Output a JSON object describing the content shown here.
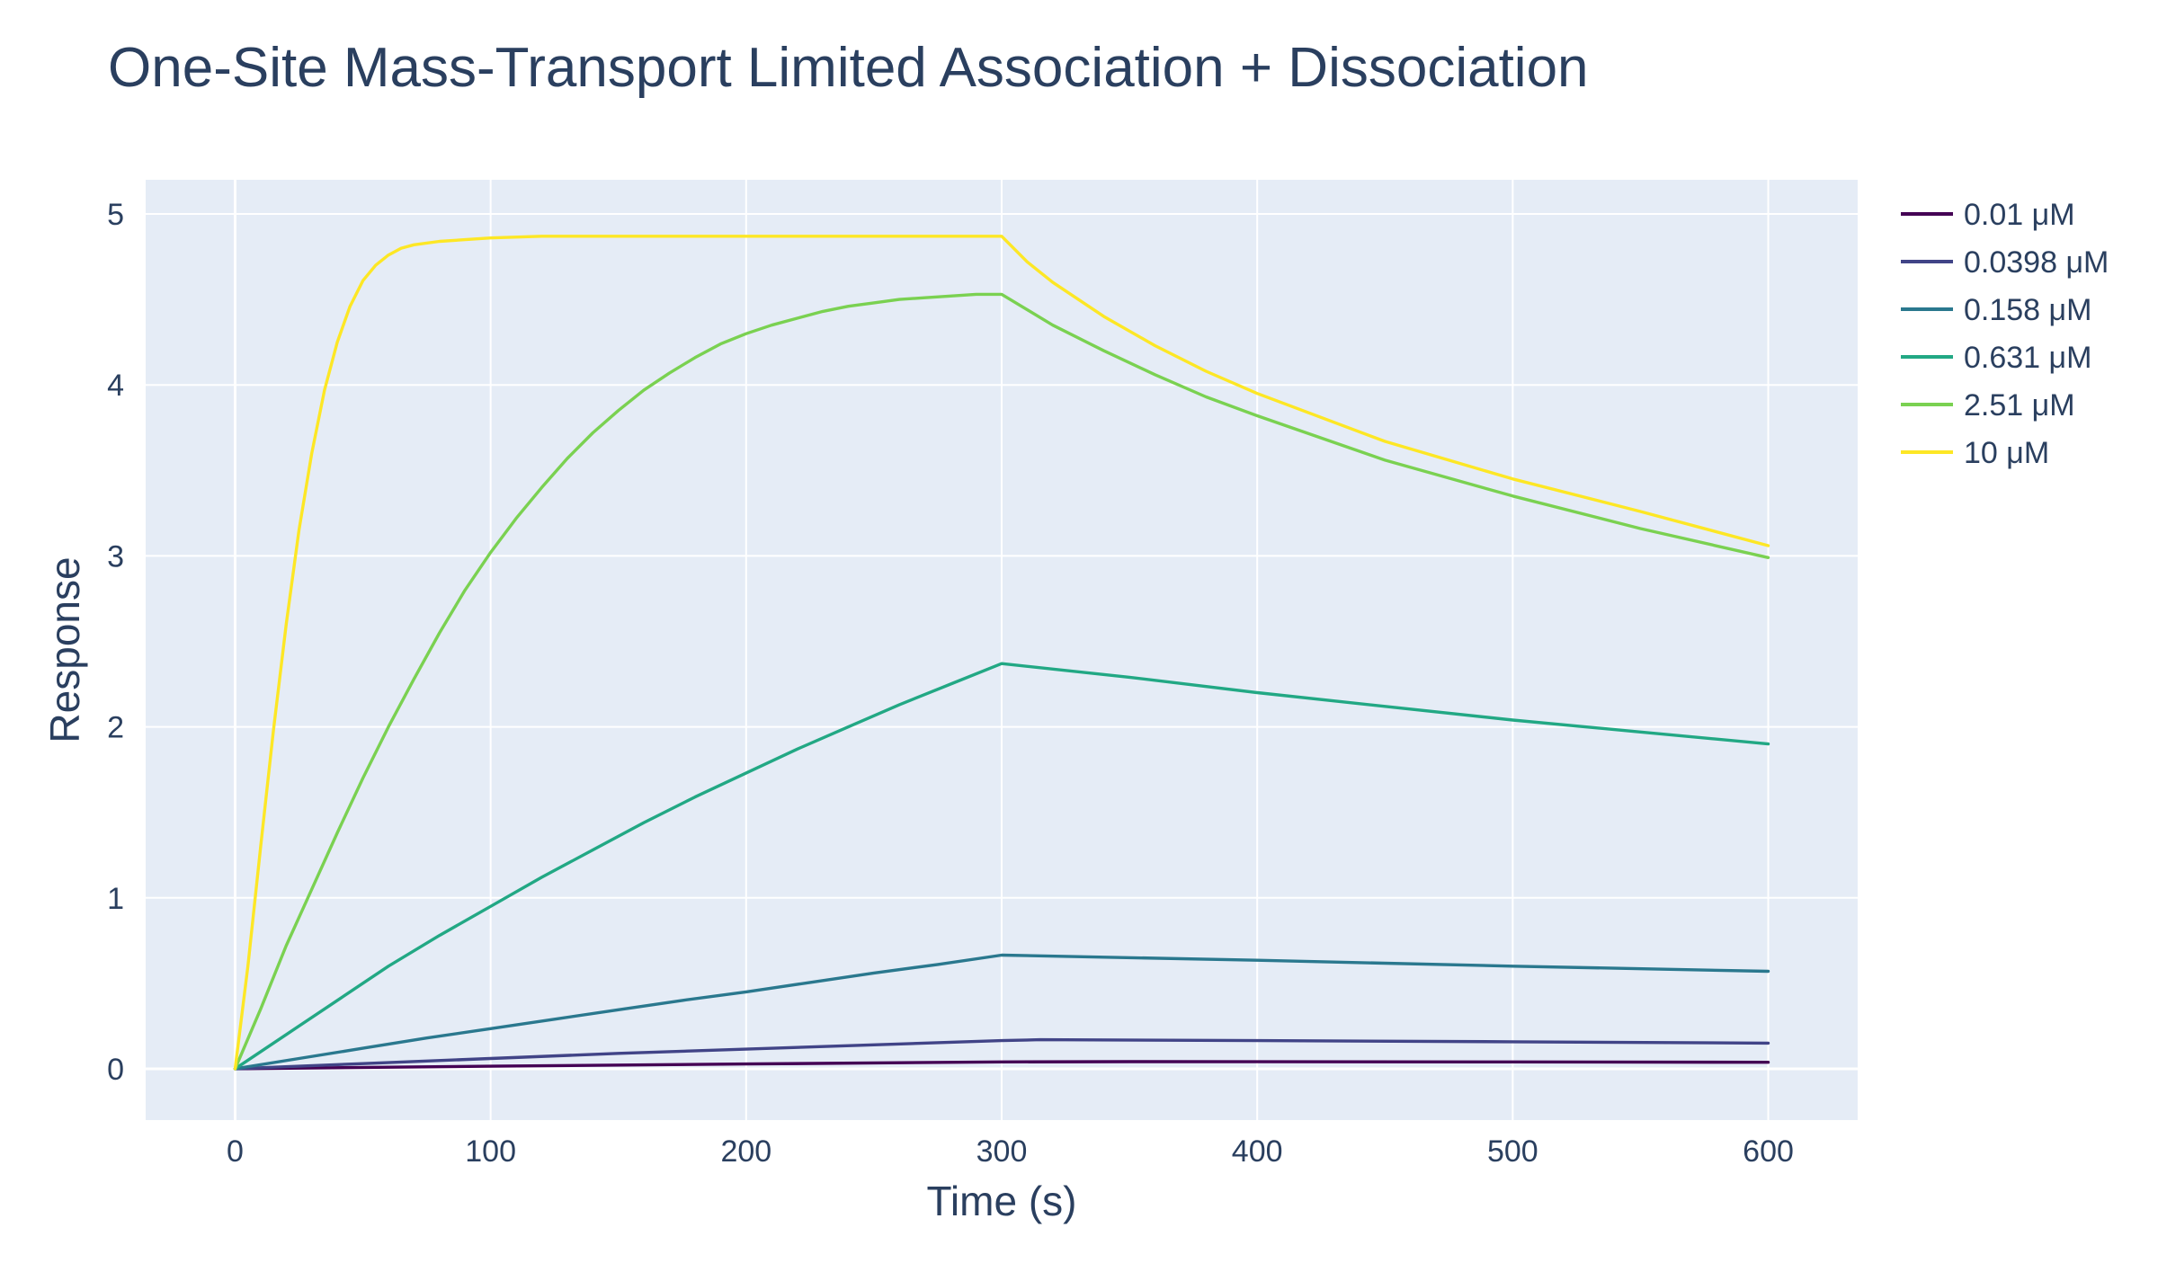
{
  "chart_data": {
    "type": "line",
    "title": "One-Site Mass-Transport Limited Association + Dissociation",
    "xlabel": "Time (s)",
    "ylabel": "Response",
    "xlim": [
      -35,
      635
    ],
    "ylim": [
      -0.3,
      5.2
    ],
    "xticks": [
      0,
      100,
      200,
      300,
      400,
      500,
      600
    ],
    "yticks": [
      0,
      1,
      2,
      3,
      4,
      5
    ],
    "grid": true,
    "legend_position": "right",
    "plot_background": "#e5ecf6",
    "series": [
      {
        "name": "0.01 μM",
        "color": "#440154",
        "x": [
          0,
          100,
          200,
          300,
          350,
          400,
          500,
          600
        ],
        "y": [
          0,
          0.015,
          0.028,
          0.04,
          0.042,
          0.041,
          0.04,
          0.038
        ]
      },
      {
        "name": "0.0398 μM",
        "color": "#414487",
        "x": [
          0,
          50,
          100,
          150,
          200,
          250,
          300,
          315,
          400,
          500,
          600
        ],
        "y": [
          0,
          0.03,
          0.06,
          0.09,
          0.115,
          0.14,
          0.165,
          0.17,
          0.165,
          0.158,
          0.15
        ]
      },
      {
        "name": "0.158 μM",
        "color": "#2a788e",
        "x": [
          0,
          25,
          50,
          75,
          100,
          125,
          150,
          175,
          200,
          225,
          250,
          275,
          300,
          400,
          500,
          600
        ],
        "y": [
          0,
          0.06,
          0.12,
          0.18,
          0.235,
          0.29,
          0.345,
          0.4,
          0.45,
          0.505,
          0.56,
          0.61,
          0.665,
          0.635,
          0.6,
          0.57
        ]
      },
      {
        "name": "0.631 μM",
        "color": "#22a884",
        "x": [
          0,
          20,
          40,
          60,
          80,
          100,
          120,
          140,
          160,
          180,
          200,
          220,
          240,
          260,
          280,
          300,
          350,
          400,
          450,
          500,
          550,
          600
        ],
        "y": [
          0,
          0.2,
          0.4,
          0.6,
          0.78,
          0.95,
          1.12,
          1.28,
          1.44,
          1.59,
          1.73,
          1.87,
          2.0,
          2.13,
          2.25,
          2.37,
          2.29,
          2.2,
          2.12,
          2.04,
          1.97,
          1.9
        ]
      },
      {
        "name": "2.51 μM",
        "color": "#7ad151",
        "x": [
          0,
          10,
          20,
          30,
          40,
          50,
          60,
          70,
          80,
          90,
          100,
          110,
          120,
          130,
          140,
          150,
          160,
          170,
          180,
          190,
          200,
          210,
          220,
          230,
          240,
          250,
          260,
          270,
          280,
          290,
          300,
          320,
          340,
          360,
          380,
          400,
          450,
          500,
          550,
          600
        ],
        "y": [
          0,
          0.35,
          0.72,
          1.05,
          1.38,
          1.7,
          2.0,
          2.28,
          2.55,
          2.8,
          3.02,
          3.22,
          3.4,
          3.57,
          3.72,
          3.85,
          3.97,
          4.07,
          4.16,
          4.24,
          4.3,
          4.35,
          4.39,
          4.43,
          4.46,
          4.48,
          4.5,
          4.51,
          4.52,
          4.53,
          4.53,
          4.35,
          4.2,
          4.06,
          3.93,
          3.82,
          3.56,
          3.35,
          3.16,
          2.99
        ]
      },
      {
        "name": "10 μM",
        "color": "#fde725",
        "x": [
          0,
          5,
          10,
          15,
          20,
          25,
          30,
          35,
          40,
          45,
          50,
          55,
          60,
          65,
          70,
          80,
          90,
          100,
          120,
          150,
          200,
          250,
          300,
          310,
          320,
          340,
          360,
          380,
          400,
          450,
          500,
          550,
          600
        ],
        "y": [
          0,
          0.6,
          1.3,
          1.98,
          2.6,
          3.15,
          3.6,
          3.97,
          4.25,
          4.46,
          4.61,
          4.7,
          4.76,
          4.8,
          4.82,
          4.84,
          4.85,
          4.86,
          4.87,
          4.87,
          4.87,
          4.87,
          4.87,
          4.72,
          4.6,
          4.4,
          4.23,
          4.08,
          3.95,
          3.67,
          3.45,
          3.26,
          3.06
        ]
      }
    ]
  }
}
